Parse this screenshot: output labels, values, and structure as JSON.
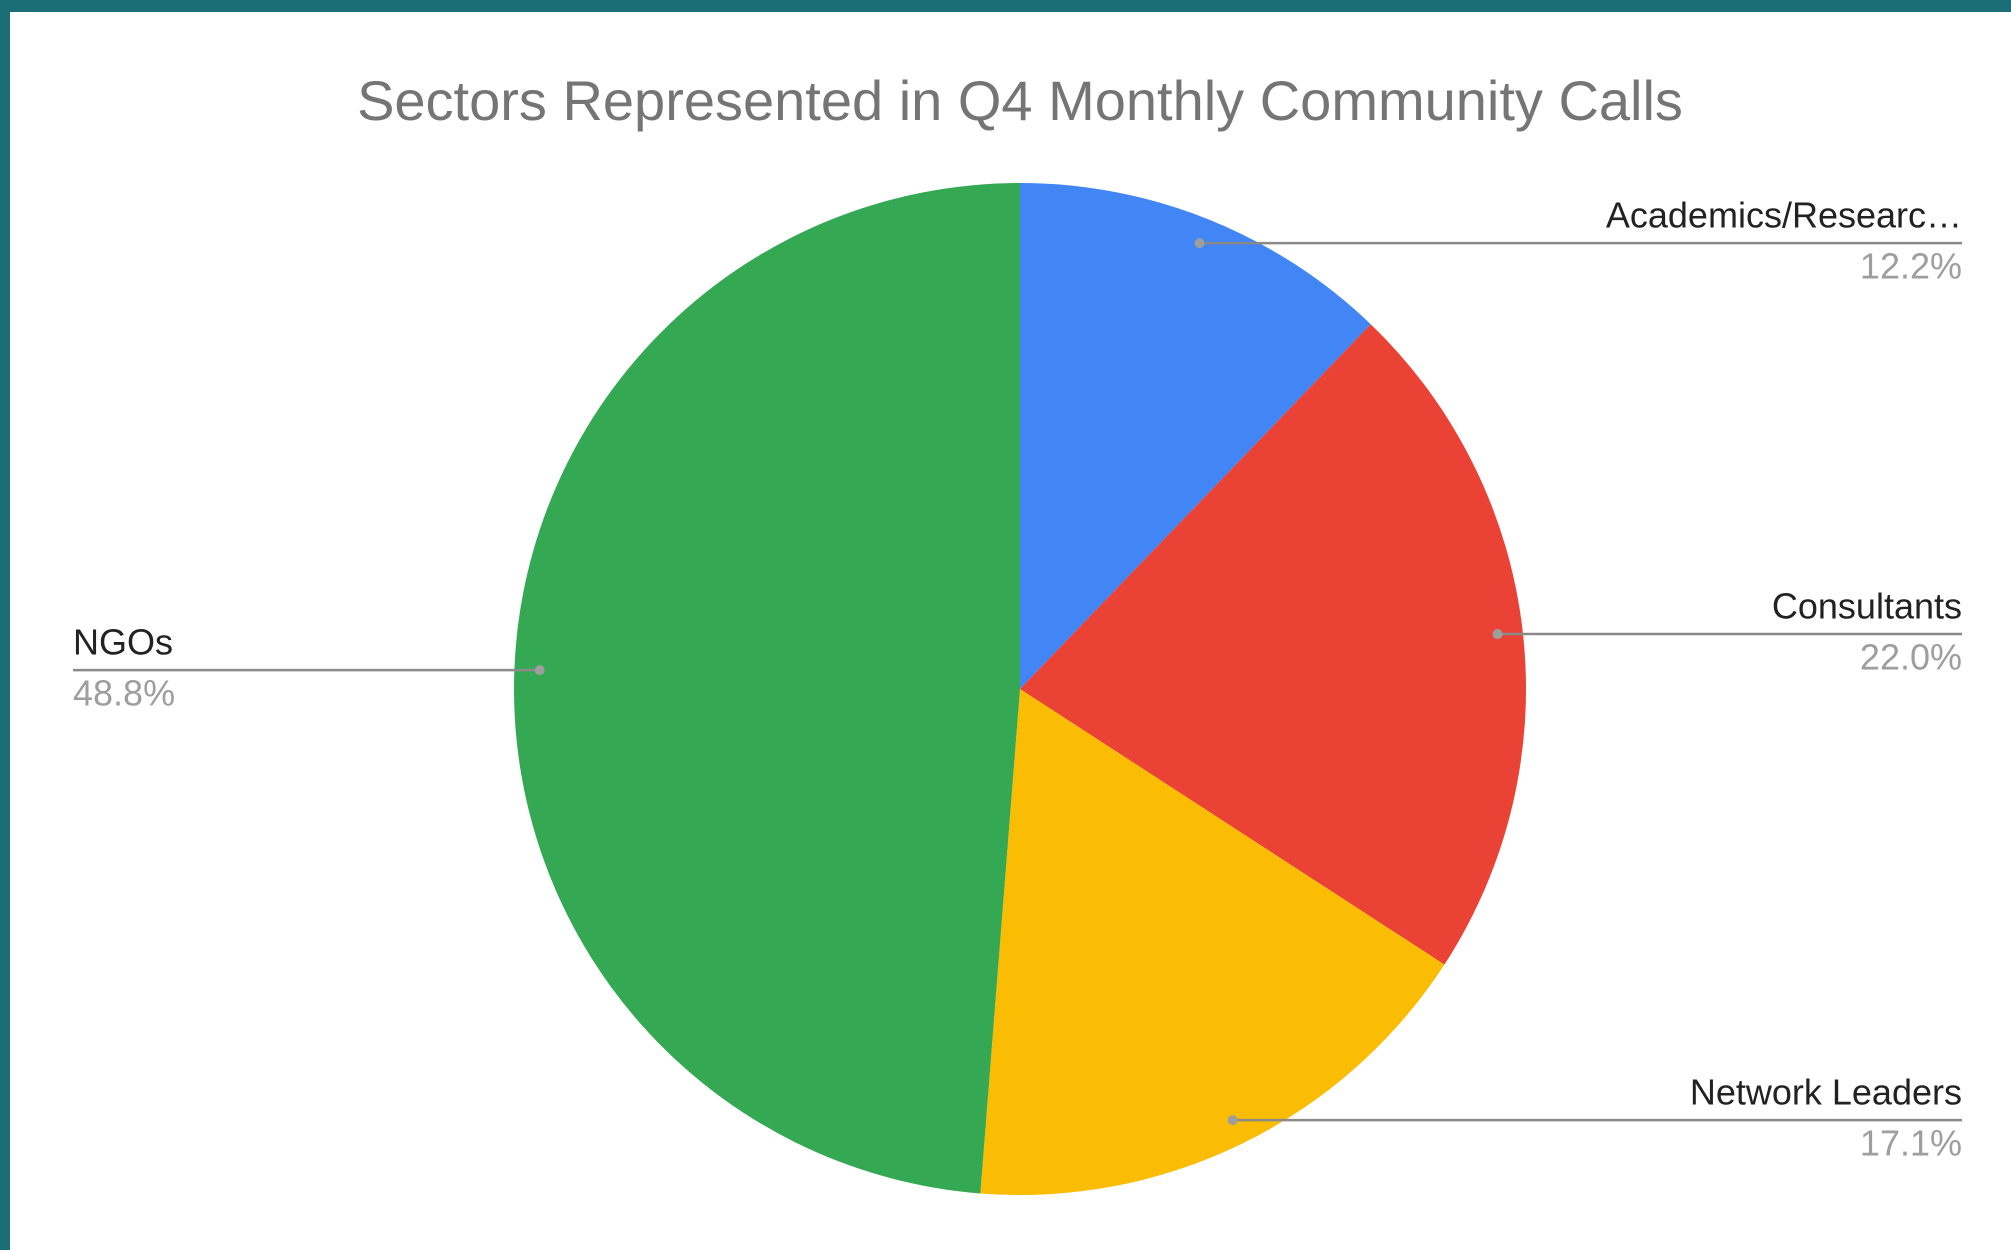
{
  "chart_data": {
    "type": "pie",
    "title": "Sectors Represented in Q4 Monthly Community Calls",
    "categories": [
      "Academics/Researc…",
      "Consultants",
      "Network Leaders",
      "NGOs"
    ],
    "values": [
      12.2,
      22.0,
      17.1,
      48.8
    ],
    "value_labels": [
      "12.2%",
      "22.0%",
      "17.1%",
      "48.8%"
    ],
    "colors": [
      "#4285f4",
      "#ea4335",
      "#fbbc04",
      "#34a853"
    ]
  }
}
